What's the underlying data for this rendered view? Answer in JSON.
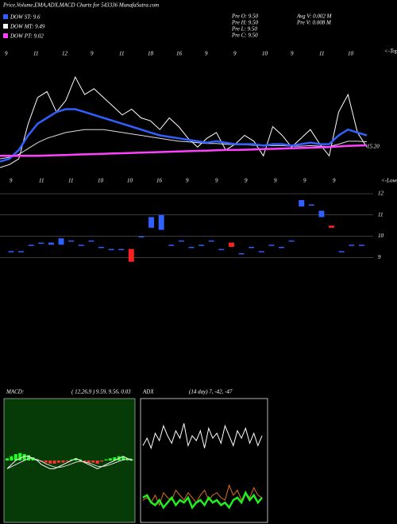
{
  "header": {
    "title": "Price,Volume,EMA,ADX,MACD Charts for 543336  MunafaSutra.com",
    "legend": [
      {
        "label": "DOW ST: 9.6",
        "color": "#3060ff"
      },
      {
        "label": "DOW MT: 9.49",
        "color": "#ffffff"
      },
      {
        "label": "DOW PT: 9.02",
        "color": "#ff40ff"
      }
    ],
    "stats": [
      "Pre  O: 9.50",
      "Pre  H: 9.50",
      "Pre  L: 9.50",
      "Pre  C: 9.50"
    ],
    "volume": [
      "Avg V: 0.002  M",
      "Pre  V: 0.008  M"
    ]
  },
  "chart_data": [
    {
      "type": "line",
      "ylim": [
        8.6,
        12.6
      ],
      "top_labels": [
        "9",
        "11",
        "12",
        "9",
        "11",
        "18",
        "16",
        "9",
        "9",
        "10",
        "9",
        "11",
        "10"
      ],
      "bottom_labels": [
        "9",
        "11",
        "11",
        "10",
        "10",
        "16",
        "9",
        "9",
        "9",
        "9",
        "9",
        "9"
      ],
      "top_note": "<-Tops",
      "bottom_note": "<-Lows",
      "price_label": "15.20",
      "series": [
        {
          "name": "Price",
          "color": "#ffffff",
          "width": 1,
          "values": [
            8.9,
            9.0,
            9.2,
            10.4,
            11.3,
            11.5,
            10.8,
            11.2,
            12.0,
            11.4,
            11.6,
            11.3,
            11.0,
            10.7,
            10.9,
            10.6,
            10.5,
            10.2,
            10.6,
            10.3,
            9.9,
            9.6,
            9.9,
            10.1,
            9.5,
            9.7,
            10.0,
            9.8,
            9.3,
            10.3,
            10.0,
            9.6,
            9.9,
            10.2,
            9.7,
            9.3,
            10.8,
            11.4,
            10.1,
            9.6
          ]
        },
        {
          "name": "EMA mid",
          "color": "#dddddd",
          "width": 1,
          "values": [
            9.2,
            9.25,
            9.35,
            9.55,
            9.75,
            9.9,
            10.0,
            10.1,
            10.15,
            10.2,
            10.2,
            10.2,
            10.15,
            10.1,
            10.05,
            10.0,
            9.95,
            9.9,
            9.85,
            9.8,
            9.78,
            9.75,
            9.72,
            9.72,
            9.7,
            9.68,
            9.68,
            9.66,
            9.65,
            9.65,
            9.65,
            9.63,
            9.63,
            9.65,
            9.63,
            9.62,
            9.7,
            9.8,
            9.8,
            9.78
          ]
        },
        {
          "name": "EMA short",
          "color": "#3060ff",
          "width": 2.5,
          "values": [
            9.1,
            9.2,
            9.5,
            10.0,
            10.4,
            10.6,
            10.8,
            10.9,
            10.9,
            10.8,
            10.7,
            10.6,
            10.5,
            10.4,
            10.3,
            10.2,
            10.1,
            10.0,
            9.95,
            9.9,
            9.85,
            9.8,
            9.75,
            9.8,
            9.75,
            9.7,
            9.7,
            9.7,
            9.65,
            9.7,
            9.7,
            9.65,
            9.7,
            9.75,
            9.7,
            9.7,
            10.0,
            10.2,
            10.1,
            10.0
          ]
        },
        {
          "name": "EMA long",
          "color": "#ff40ff",
          "width": 2.5,
          "values": [
            9.3,
            9.3,
            9.3,
            9.3,
            9.3,
            9.31,
            9.32,
            9.33,
            9.34,
            9.35,
            9.36,
            9.37,
            9.38,
            9.39,
            9.4,
            9.41,
            9.42,
            9.43,
            9.44,
            9.45,
            9.46,
            9.47,
            9.48,
            9.49,
            9.5,
            9.5,
            9.51,
            9.52,
            9.53,
            9.54,
            9.55,
            9.56,
            9.57,
            9.58,
            9.59,
            9.6,
            9.62,
            9.64,
            9.65,
            9.66
          ]
        }
      ]
    },
    {
      "type": "candlestick",
      "ylim": [
        8.6,
        12.3
      ],
      "yticks": [
        9,
        10,
        11,
        12
      ],
      "open": [
        9.3,
        9.3,
        9.6,
        9.7,
        9.6,
        9.6,
        9.8,
        9.6,
        9.8,
        9.5,
        9.4,
        9.4,
        9.4,
        10.0,
        10.4,
        10.3,
        9.6,
        9.8,
        9.5,
        9.6,
        9.8,
        9.4,
        9.7,
        9.2,
        9.5,
        9.3,
        9.6,
        9.5,
        9.8,
        11.4,
        11.5,
        10.9,
        10.5,
        9.3,
        9.6,
        9.6
      ],
      "close": [
        9.3,
        9.3,
        9.6,
        9.7,
        9.7,
        9.9,
        9.8,
        9.6,
        9.8,
        9.5,
        9.4,
        9.4,
        8.8,
        10.0,
        10.9,
        11.0,
        9.6,
        9.8,
        9.5,
        9.6,
        9.8,
        9.4,
        9.5,
        9.2,
        9.5,
        9.3,
        9.6,
        9.5,
        9.8,
        11.7,
        11.5,
        11.2,
        10.4,
        9.3,
        9.6,
        9.6
      ],
      "up_color": "#3060ff",
      "down_color": "#ff2020"
    },
    {
      "type": "macd",
      "title": "MACD:",
      "subtitle": "( 12,26,9 ) 9.59, 9.56, 0.03",
      "ylim": [
        8.0,
        11.0
      ],
      "hist_lim": [
        -1.5,
        1.5
      ],
      "background": "#063a06",
      "series": [
        {
          "name": "MACD",
          "color": "#ffffff",
          "values": [
            9.3,
            9.4,
            9.5,
            9.55,
            9.6,
            9.6,
            9.55,
            9.5,
            9.4,
            9.35,
            9.3,
            9.3,
            9.35,
            9.4,
            9.45,
            9.5,
            9.55,
            9.5,
            9.45,
            9.4,
            9.35,
            9.3,
            9.35,
            9.4,
            9.45,
            9.5,
            9.55,
            9.6,
            9.55,
            9.5
          ]
        },
        {
          "name": "Signal",
          "color": "#dddddd",
          "values": [
            9.3,
            9.35,
            9.4,
            9.45,
            9.5,
            9.55,
            9.55,
            9.52,
            9.48,
            9.42,
            9.38,
            9.34,
            9.33,
            9.35,
            9.38,
            9.42,
            9.46,
            9.48,
            9.47,
            9.44,
            9.4,
            9.36,
            9.35,
            9.37,
            9.4,
            9.44,
            9.48,
            9.52,
            9.54,
            9.53
          ]
        }
      ],
      "hist": [
        0.2,
        0.4,
        0.6,
        0.7,
        0.6,
        0.5,
        0.3,
        0.1,
        -0.1,
        -0.2,
        -0.3,
        -0.3,
        -0.2,
        -0.2,
        -0.1,
        0.1,
        0.2,
        0.1,
        -0.1,
        -0.2,
        -0.2,
        -0.3,
        -0.1,
        0.1,
        0.2,
        0.3,
        0.4,
        0.4,
        0.2,
        0.1
      ],
      "up_color": "#20ff20",
      "down_color": "#ff3030"
    },
    {
      "type": "adx",
      "title": "ADX",
      "subtitle": "(14  day) 7, -42, -47",
      "ylim": [
        0,
        100
      ],
      "series": [
        {
          "name": "+DI",
          "color": "#ffffff",
          "values": [
            62,
            68,
            60,
            72,
            66,
            78,
            70,
            64,
            74,
            68,
            80,
            62,
            70,
            66,
            74,
            60,
            76,
            68,
            72,
            64,
            78,
            70,
            62,
            74,
            68,
            76,
            64,
            72,
            62,
            70
          ]
        },
        {
          "name": "-DI",
          "color": "#e07020",
          "values": [
            18,
            20,
            16,
            22,
            14,
            24,
            20,
            18,
            26,
            22,
            18,
            24,
            20,
            16,
            22,
            26,
            18,
            22,
            24,
            20,
            18,
            30,
            22,
            26,
            18,
            24,
            20,
            28,
            22,
            20
          ]
        },
        {
          "name": "ADX",
          "color": "#20ee20",
          "values": [
            20,
            22,
            16,
            14,
            18,
            12,
            16,
            20,
            14,
            18,
            16,
            20,
            12,
            16,
            18,
            14,
            20,
            16,
            18,
            14,
            16,
            12,
            18,
            20,
            16,
            24,
            18,
            22,
            16,
            20
          ]
        }
      ]
    }
  ]
}
